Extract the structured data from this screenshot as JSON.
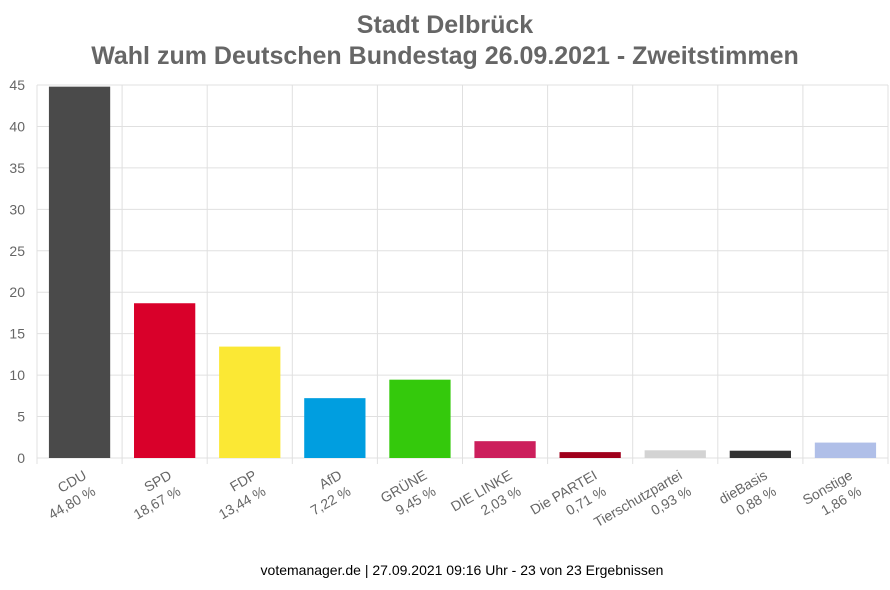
{
  "chart_data": {
    "type": "bar",
    "title": "Stadt Delbrück",
    "subtitle": "Wahl zum Deutschen Bundestag 26.09.2021  - Zweitstimmen",
    "categories": [
      "CDU",
      "SPD",
      "FDP",
      "AfD",
      "GRÜNE",
      "DIE LINKE",
      "Die PARTEI",
      "Tierschutzpartei",
      "dieBasis",
      "Sonstige"
    ],
    "values": [
      44.8,
      18.67,
      13.44,
      7.22,
      9.45,
      2.03,
      0.71,
      0.93,
      0.88,
      1.86
    ],
    "value_labels": [
      "44,80 %",
      "18,67 %",
      "13,44 %",
      "7,22 %",
      "9,45 %",
      "2,03 %",
      "0,71 %",
      "0,93 %",
      "0,88 %",
      "1,86 %"
    ],
    "colors": [
      "#4a4a4a",
      "#d9002a",
      "#fbe834",
      "#009ee0",
      "#34c90c",
      "#cc1f5c",
      "#a0001c",
      "#d3d3d3",
      "#333333",
      "#b0bfe8"
    ],
    "ylim": [
      0,
      45
    ],
    "yticks": [
      0,
      5,
      10,
      15,
      20,
      25,
      30,
      35,
      40,
      45
    ],
    "grid": true,
    "footer": "votemanager.de | 27.09.2021 09:16 Uhr - 23 von 23 Ergebnissen"
  }
}
